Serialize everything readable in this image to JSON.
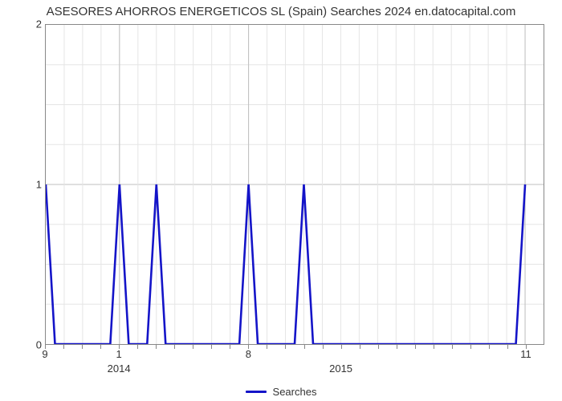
{
  "chart": {
    "type": "line",
    "title": "ASESORES AHORROS ENERGETICOS SL (Spain) Searches 2024 en.datocapital.com",
    "title_fontsize": 15,
    "title_color": "#333333",
    "background_color": "#ffffff",
    "plot_border_color": "#888888",
    "grid": {
      "major_color": "#bfbfbf",
      "minor_color": "#e5e5e5",
      "line_width": 1,
      "y_major_per_unit": 1,
      "y_minor_per_unit": 4
    },
    "y_axis": {
      "lim": [
        0,
        2
      ],
      "ticks": [
        0,
        1,
        2
      ],
      "label_fontsize": 13,
      "label_color": "#333333"
    },
    "x_axis": {
      "range_months": 27,
      "small_ticks": [
        {
          "pos": 0,
          "label": "9"
        },
        {
          "pos": 4,
          "label": "1"
        },
        {
          "pos": 11,
          "label": "8"
        },
        {
          "pos": 26,
          "label": "11"
        }
      ],
      "major_labels": [
        {
          "pos": 4,
          "label": "2014"
        },
        {
          "pos": 16,
          "label": "2015"
        }
      ],
      "minor_tick_positions": [
        0,
        1,
        2,
        3,
        4,
        5,
        6,
        7,
        8,
        9,
        10,
        11,
        12,
        13,
        14,
        15,
        16,
        17,
        18,
        19,
        20,
        21,
        22,
        23,
        24,
        25,
        26
      ],
      "label_fontsize": 13,
      "label_color": "#333333"
    },
    "series": {
      "name": "Searches",
      "color": "#1414c8",
      "line_width": 2.6,
      "x": [
        0,
        0.5,
        3.5,
        4,
        4.5,
        5.5,
        6,
        6.5,
        10.5,
        11,
        11.5,
        13.5,
        14,
        14.5,
        25.5,
        26
      ],
      "y": [
        1,
        0,
        0,
        1,
        0,
        0,
        1,
        0,
        0,
        1,
        0,
        0,
        1,
        0,
        0,
        1
      ]
    },
    "legend": {
      "label": "Searches",
      "line_color": "#1414c8",
      "fontsize": 13
    }
  }
}
